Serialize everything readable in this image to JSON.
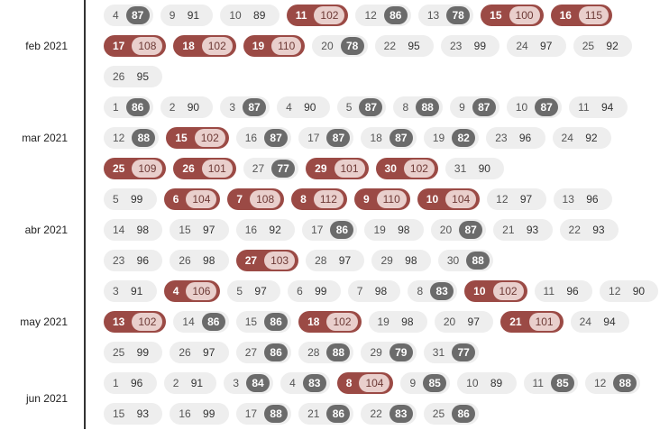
{
  "thresholds": {
    "high": 100,
    "low": 88
  },
  "months": [
    {
      "label": "feb 2021",
      "rows": [
        [
          [
            4,
            87
          ],
          [
            9,
            91
          ],
          [
            10,
            89
          ],
          [
            11,
            102
          ],
          [
            12,
            86
          ],
          [
            13,
            78
          ],
          [
            15,
            100
          ],
          [
            16,
            115
          ]
        ],
        [
          [
            17,
            108
          ],
          [
            18,
            102
          ],
          [
            19,
            110
          ],
          [
            20,
            78
          ],
          [
            22,
            95
          ],
          [
            23,
            99
          ],
          [
            24,
            97
          ],
          [
            25,
            92
          ]
        ],
        [
          [
            26,
            95
          ]
        ]
      ]
    },
    {
      "label": "mar 2021",
      "rows": [
        [
          [
            1,
            86
          ],
          [
            2,
            90
          ],
          [
            3,
            87
          ],
          [
            4,
            90
          ],
          [
            5,
            87
          ],
          [
            8,
            88
          ],
          [
            9,
            87
          ],
          [
            10,
            87
          ],
          [
            11,
            94
          ]
        ],
        [
          [
            12,
            88
          ],
          [
            15,
            102
          ],
          [
            16,
            87
          ],
          [
            17,
            87
          ],
          [
            18,
            87
          ],
          [
            19,
            82
          ],
          [
            23,
            96
          ],
          [
            24,
            92
          ]
        ],
        [
          [
            25,
            109
          ],
          [
            26,
            101
          ],
          [
            27,
            77
          ],
          [
            29,
            101
          ],
          [
            30,
            102
          ],
          [
            31,
            90
          ]
        ]
      ]
    },
    {
      "label": "abr 2021",
      "rows": [
        [
          [
            5,
            99
          ],
          [
            6,
            104
          ],
          [
            7,
            108
          ],
          [
            8,
            112
          ],
          [
            9,
            110
          ],
          [
            10,
            104
          ],
          [
            12,
            97
          ],
          [
            13,
            96
          ]
        ],
        [
          [
            14,
            98
          ],
          [
            15,
            97
          ],
          [
            16,
            92
          ],
          [
            17,
            86
          ],
          [
            19,
            98
          ],
          [
            20,
            87
          ],
          [
            21,
            93
          ],
          [
            22,
            93
          ]
        ],
        [
          [
            23,
            96
          ],
          [
            26,
            98
          ],
          [
            27,
            103
          ],
          [
            28,
            97
          ],
          [
            29,
            98
          ],
          [
            30,
            88
          ]
        ]
      ]
    },
    {
      "label": "may 2021",
      "rows": [
        [
          [
            3,
            91
          ],
          [
            4,
            106
          ],
          [
            5,
            97
          ],
          [
            6,
            99
          ],
          [
            7,
            98
          ],
          [
            8,
            83
          ],
          [
            10,
            102
          ],
          [
            11,
            96
          ],
          [
            12,
            90
          ]
        ],
        [
          [
            13,
            102
          ],
          [
            14,
            86
          ],
          [
            15,
            86
          ],
          [
            18,
            102
          ],
          [
            19,
            98
          ],
          [
            20,
            97
          ],
          [
            21,
            101
          ],
          [
            24,
            94
          ]
        ],
        [
          [
            25,
            99
          ],
          [
            26,
            97
          ],
          [
            27,
            86
          ],
          [
            28,
            88
          ],
          [
            29,
            79
          ],
          [
            31,
            77
          ]
        ]
      ]
    },
    {
      "label": "jun 2021",
      "rows": [
        [
          [
            1,
            96
          ],
          [
            2,
            91
          ],
          [
            3,
            84
          ],
          [
            4,
            83
          ],
          [
            8,
            104
          ],
          [
            9,
            85
          ],
          [
            10,
            89
          ],
          [
            11,
            85
          ],
          [
            12,
            88
          ]
        ],
        [
          [
            15,
            93
          ],
          [
            16,
            99
          ],
          [
            17,
            88
          ],
          [
            21,
            86
          ],
          [
            22,
            83
          ],
          [
            25,
            86
          ]
        ]
      ]
    }
  ]
}
